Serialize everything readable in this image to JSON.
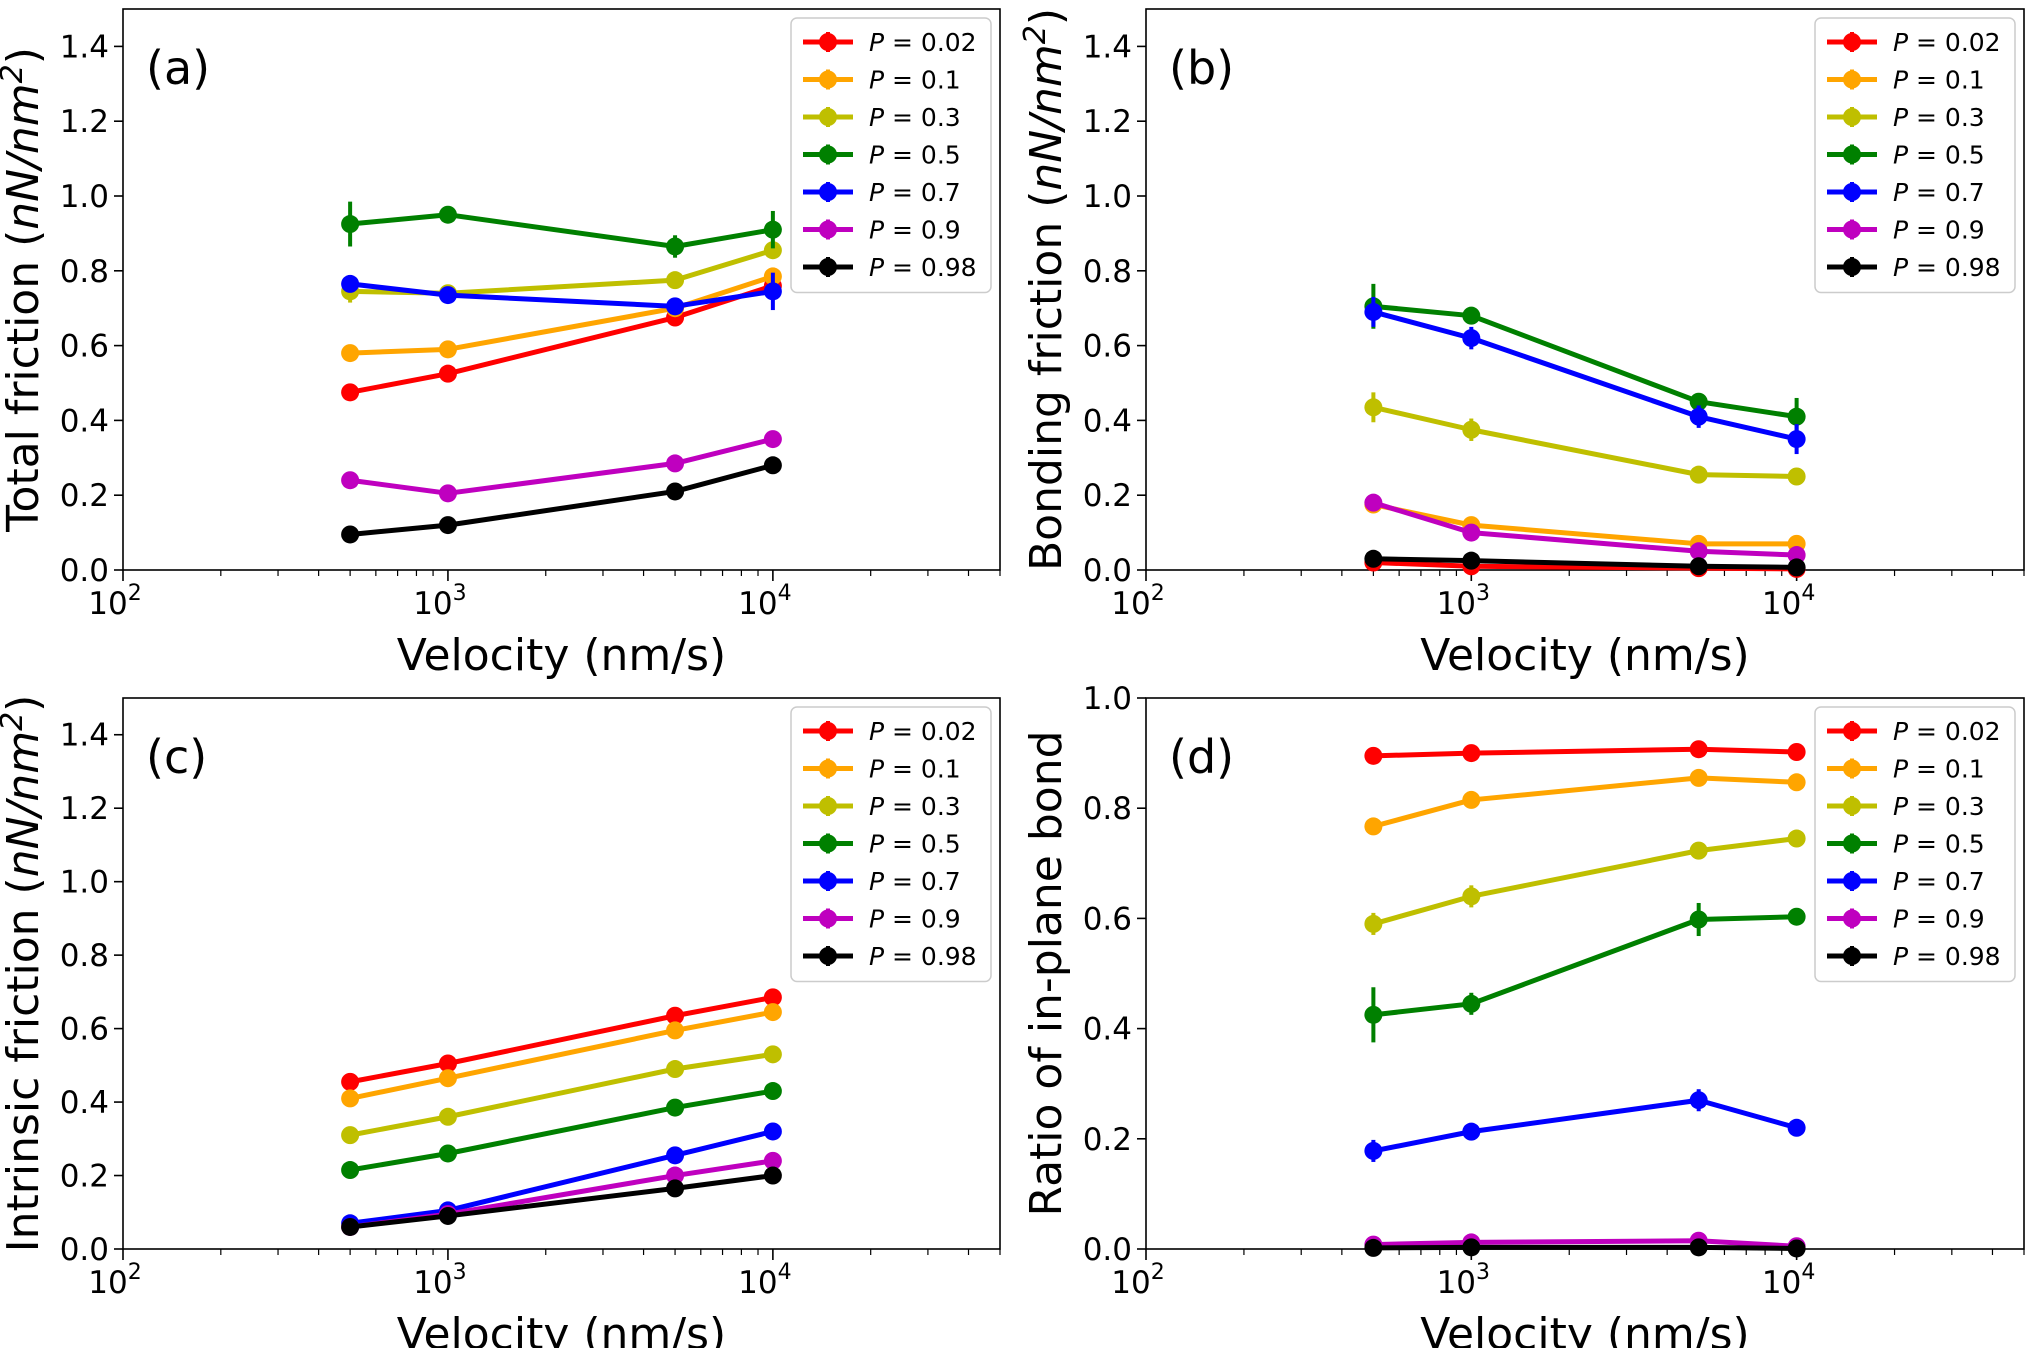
{
  "colors": {
    "P = 0.02": "#ff0000",
    "P = 0.1": "#ffa500",
    "P = 0.3": "#bfbf00",
    "P = 0.5": "#008000",
    "P = 0.7": "#0000ff",
    "P = 0.9": "#bf00bf",
    "P = 0.98": "#000000"
  },
  "legend_labels": [
    {
      "italic": "P",
      "rest": " = 0.02"
    },
    {
      "italic": "P",
      "rest": " = 0.1"
    },
    {
      "italic": "P",
      "rest": " = 0.3"
    },
    {
      "italic": "P",
      "rest": " = 0.5"
    },
    {
      "italic": "P",
      "rest": " = 0.7"
    },
    {
      "italic": "P",
      "rest": " = 0.9"
    },
    {
      "italic": "P",
      "rest": " = 0.98"
    }
  ],
  "chart_data": [
    {
      "type": "line",
      "panel": "(a)",
      "xlabel": "Velocity (nm/s)",
      "ylabel": "Total friction (nN/nm²)",
      "ylabel_plain": "Total friction (",
      "ylabel_unit": "nN/nm",
      "ylabel_sup": "2",
      "xscale": "log",
      "xlim": [
        100,
        50000
      ],
      "ylim": [
        0,
        1.5
      ],
      "yticks": [
        0.0,
        0.2,
        0.4,
        0.6,
        0.8,
        1.0,
        1.2,
        1.4
      ],
      "ytick_labels": [
        "0.0",
        "0.2",
        "0.4",
        "0.6",
        "0.8",
        "1.0",
        "1.2",
        "1.4"
      ],
      "xtick_labels": [
        {
          "base": "10",
          "exp": "2",
          "value": 100
        },
        {
          "base": "10",
          "exp": "3",
          "value": 1000
        },
        {
          "base": "10",
          "exp": "4",
          "value": 10000
        }
      ],
      "legend": "top-right",
      "x": [
        500,
        1000,
        5000,
        10000
      ],
      "series": [
        {
          "name": "P = 0.02",
          "values": [
            0.475,
            0.525,
            0.675,
            0.76
          ],
          "err": [
            0.01,
            0.01,
            0.015,
            0.02
          ]
        },
        {
          "name": "P = 0.1",
          "values": [
            0.58,
            0.59,
            0.7,
            0.785
          ],
          "err": [
            0.01,
            0.01,
            0.01,
            0.02
          ]
        },
        {
          "name": "P = 0.3",
          "values": [
            0.745,
            0.74,
            0.775,
            0.855
          ],
          "err": [
            0.03,
            0.02,
            0.01,
            0.02
          ]
        },
        {
          "name": "P = 0.5",
          "values": [
            0.925,
            0.95,
            0.865,
            0.91
          ],
          "err": [
            0.06,
            0.015,
            0.03,
            0.05
          ]
        },
        {
          "name": "P = 0.7",
          "values": [
            0.765,
            0.735,
            0.705,
            0.745
          ],
          "err": [
            0.02,
            0.02,
            0.02,
            0.05
          ]
        },
        {
          "name": "P = 0.9",
          "values": [
            0.24,
            0.205,
            0.285,
            0.35
          ],
          "err": [
            0.01,
            0.01,
            0.01,
            0.01
          ]
        },
        {
          "name": "P = 0.98",
          "values": [
            0.095,
            0.12,
            0.21,
            0.28
          ],
          "err": [
            0.01,
            0.01,
            0.01,
            0.01
          ]
        }
      ]
    },
    {
      "type": "line",
      "panel": "(b)",
      "xlabel": "Velocity (nm/s)",
      "ylabel": "Bonding friction (nN/nm²)",
      "ylabel_plain": "Bonding friction (",
      "ylabel_unit": "nN/nm",
      "ylabel_sup": "2",
      "xscale": "log",
      "xlim": [
        100,
        50000
      ],
      "ylim": [
        0,
        1.5
      ],
      "yticks": [
        0.0,
        0.2,
        0.4,
        0.6,
        0.8,
        1.0,
        1.2,
        1.4
      ],
      "ytick_labels": [
        "0.0",
        "0.2",
        "0.4",
        "0.6",
        "0.8",
        "1.0",
        "1.2",
        "1.4"
      ],
      "xtick_labels": [
        {
          "base": "10",
          "exp": "2",
          "value": 100
        },
        {
          "base": "10",
          "exp": "3",
          "value": 1000
        },
        {
          "base": "10",
          "exp": "4",
          "value": 10000
        }
      ],
      "legend": "top-right",
      "x": [
        500,
        1000,
        5000,
        10000
      ],
      "series": [
        {
          "name": "P = 0.02",
          "values": [
            0.02,
            0.01,
            0.005,
            0.003
          ],
          "err": [
            0.005,
            0.005,
            0.003,
            0.002
          ]
        },
        {
          "name": "P = 0.1",
          "values": [
            0.175,
            0.12,
            0.07,
            0.07
          ],
          "err": [
            0.01,
            0.01,
            0.01,
            0.01
          ]
        },
        {
          "name": "P = 0.3",
          "values": [
            0.435,
            0.375,
            0.255,
            0.25
          ],
          "err": [
            0.04,
            0.03,
            0.01,
            0.02
          ]
        },
        {
          "name": "P = 0.5",
          "values": [
            0.705,
            0.68,
            0.45,
            0.41
          ],
          "err": [
            0.06,
            0.015,
            0.02,
            0.05
          ]
        },
        {
          "name": "P = 0.7",
          "values": [
            0.69,
            0.62,
            0.41,
            0.35
          ],
          "err": [
            0.04,
            0.03,
            0.03,
            0.04
          ]
        },
        {
          "name": "P = 0.9",
          "values": [
            0.18,
            0.1,
            0.05,
            0.04
          ],
          "err": [
            0.01,
            0.01,
            0.01,
            0.01
          ]
        },
        {
          "name": "P = 0.98",
          "values": [
            0.03,
            0.025,
            0.01,
            0.007
          ],
          "err": [
            0.01,
            0.005,
            0.005,
            0.003
          ]
        }
      ]
    },
    {
      "type": "line",
      "panel": "(c)",
      "xlabel": "Velocity (nm/s)",
      "ylabel": "Intrinsic friction (nN/nm²)",
      "ylabel_plain": "Intrinsic friction (",
      "ylabel_unit": "nN/nm",
      "ylabel_sup": "2",
      "xscale": "log",
      "xlim": [
        100,
        50000
      ],
      "ylim": [
        0,
        1.5
      ],
      "yticks": [
        0.0,
        0.2,
        0.4,
        0.6,
        0.8,
        1.0,
        1.2,
        1.4
      ],
      "ytick_labels": [
        "0.0",
        "0.2",
        "0.4",
        "0.6",
        "0.8",
        "1.0",
        "1.2",
        "1.4"
      ],
      "xtick_labels": [
        {
          "base": "10",
          "exp": "2",
          "value": 100
        },
        {
          "base": "10",
          "exp": "3",
          "value": 1000
        },
        {
          "base": "10",
          "exp": "4",
          "value": 10000
        }
      ],
      "legend": "top-right",
      "x": [
        500,
        1000,
        5000,
        10000
      ],
      "series": [
        {
          "name": "P = 0.02",
          "values": [
            0.455,
            0.505,
            0.635,
            0.685
          ],
          "err": [
            0.01,
            0.01,
            0.01,
            0.01
          ]
        },
        {
          "name": "P = 0.1",
          "values": [
            0.41,
            0.465,
            0.595,
            0.645
          ],
          "err": [
            0.01,
            0.01,
            0.01,
            0.01
          ]
        },
        {
          "name": "P = 0.3",
          "values": [
            0.31,
            0.36,
            0.49,
            0.53
          ],
          "err": [
            0.01,
            0.01,
            0.01,
            0.01
          ]
        },
        {
          "name": "P = 0.5",
          "values": [
            0.215,
            0.26,
            0.385,
            0.43
          ],
          "err": [
            0.01,
            0.01,
            0.01,
            0.01
          ]
        },
        {
          "name": "P = 0.7",
          "values": [
            0.07,
            0.105,
            0.255,
            0.32
          ],
          "err": [
            0.01,
            0.01,
            0.01,
            0.01
          ]
        },
        {
          "name": "P = 0.9",
          "values": [
            0.06,
            0.095,
            0.2,
            0.24
          ],
          "err": [
            0.01,
            0.01,
            0.01,
            0.01
          ]
        },
        {
          "name": "P = 0.98",
          "values": [
            0.06,
            0.09,
            0.165,
            0.2
          ],
          "err": [
            0.01,
            0.01,
            0.01,
            0.01
          ]
        }
      ]
    },
    {
      "type": "line",
      "panel": "(d)",
      "xlabel": "Velocity (nm/s)",
      "ylabel": "Ratio of in-plane bond",
      "ylabel_plain": "Ratio of in-plane bond",
      "ylabel_unit": "",
      "ylabel_sup": "",
      "xscale": "log",
      "xlim": [
        100,
        50000
      ],
      "ylim": [
        0,
        1.0
      ],
      "yticks": [
        0.0,
        0.2,
        0.4,
        0.6,
        0.8,
        1.0
      ],
      "ytick_labels": [
        "0.0",
        "0.2",
        "0.4",
        "0.6",
        "0.8",
        "1.0"
      ],
      "xtick_labels": [
        {
          "base": "10",
          "exp": "2",
          "value": 100
        },
        {
          "base": "10",
          "exp": "3",
          "value": 1000
        },
        {
          "base": "10",
          "exp": "4",
          "value": 10000
        }
      ],
      "legend": "top-right",
      "x": [
        500,
        1000,
        5000,
        10000
      ],
      "series": [
        {
          "name": "P = 0.02",
          "values": [
            0.895,
            0.9,
            0.907,
            0.902
          ],
          "err": [
            0.005,
            0.005,
            0.005,
            0.005
          ]
        },
        {
          "name": "P = 0.1",
          "values": [
            0.767,
            0.815,
            0.855,
            0.847
          ],
          "err": [
            0.01,
            0.01,
            0.01,
            0.01
          ]
        },
        {
          "name": "P = 0.3",
          "values": [
            0.59,
            0.64,
            0.723,
            0.745
          ],
          "err": [
            0.02,
            0.02,
            0.01,
            0.01
          ]
        },
        {
          "name": "P = 0.5",
          "values": [
            0.425,
            0.445,
            0.598,
            0.603
          ],
          "err": [
            0.05,
            0.02,
            0.03,
            0.015
          ]
        },
        {
          "name": "P = 0.7",
          "values": [
            0.178,
            0.213,
            0.27,
            0.22
          ],
          "err": [
            0.02,
            0.01,
            0.02,
            0.01
          ]
        },
        {
          "name": "P = 0.9",
          "values": [
            0.008,
            0.012,
            0.015,
            0.005
          ],
          "err": [
            0.003,
            0.003,
            0.003,
            0.002
          ]
        },
        {
          "name": "P = 0.98",
          "values": [
            0.002,
            0.003,
            0.003,
            0.001
          ],
          "err": [
            0.001,
            0.001,
            0.001,
            0.001
          ]
        }
      ]
    }
  ]
}
